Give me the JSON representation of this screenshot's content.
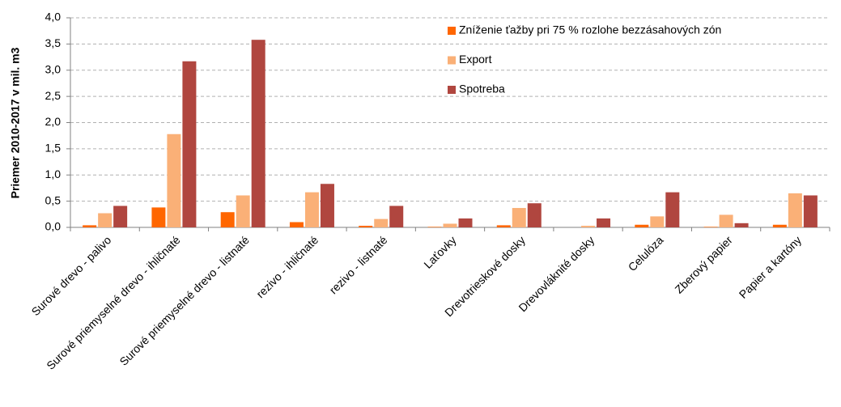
{
  "chart_data": {
    "type": "bar",
    "ylabel": "Priemer 2010-2017 v mil. m3",
    "categories": [
      "Surové drevo - palivo",
      "Surové priemyselné drevo - ihličnaté",
      "Surové priemyselné drevo - listnaté",
      "rezivo - ihličnaté",
      "rezivo - listnaté",
      "Laťovky",
      "Drevotrieskové dosky",
      "Drevovláknité dosky",
      "Celulóza",
      "Zberový papier",
      "Papier a kartóny"
    ],
    "series": [
      {
        "name": "Zníženie ťažby pri 75 % rozlohe bezzásahových zón",
        "color": "#ff6600",
        "values": [
          0.04,
          0.38,
          0.29,
          0.1,
          0.03,
          0.01,
          0.04,
          0.0,
          0.05,
          0.01,
          0.05
        ]
      },
      {
        "name": "Export",
        "color": "#fab077",
        "values": [
          0.27,
          1.78,
          0.61,
          0.67,
          0.16,
          0.07,
          0.37,
          0.03,
          0.21,
          0.24,
          0.65
        ]
      },
      {
        "name": "Spotreba",
        "color": "#b0463f",
        "values": [
          0.41,
          3.17,
          3.58,
          0.83,
          0.41,
          0.17,
          0.46,
          0.17,
          0.67,
          0.08,
          0.61
        ]
      }
    ],
    "ylim": [
      0,
      4
    ],
    "yticks": [
      {
        "value": 0,
        "label": "0,0"
      },
      {
        "value": 0.5,
        "label": "0,5"
      },
      {
        "value": 1,
        "label": "1,0"
      },
      {
        "value": 1.5,
        "label": "1,5"
      },
      {
        "value": 2,
        "label": "2,0"
      },
      {
        "value": 2.5,
        "label": "2,5"
      },
      {
        "value": 3,
        "label": "3,0"
      },
      {
        "value": 3.5,
        "label": "3,5"
      },
      {
        "value": 4,
        "label": "4,0"
      }
    ],
    "grid": true
  }
}
